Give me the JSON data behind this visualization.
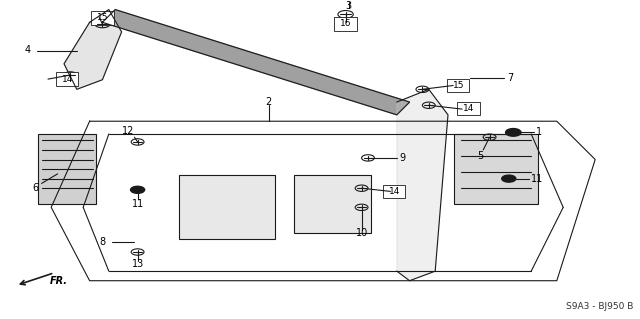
{
  "bg_color": "#ffffff",
  "line_color": "#1a1a1a",
  "diagram_code": "S9A3 - BJ950 B",
  "figsize": [
    6.4,
    3.19
  ],
  "dpi": 100
}
